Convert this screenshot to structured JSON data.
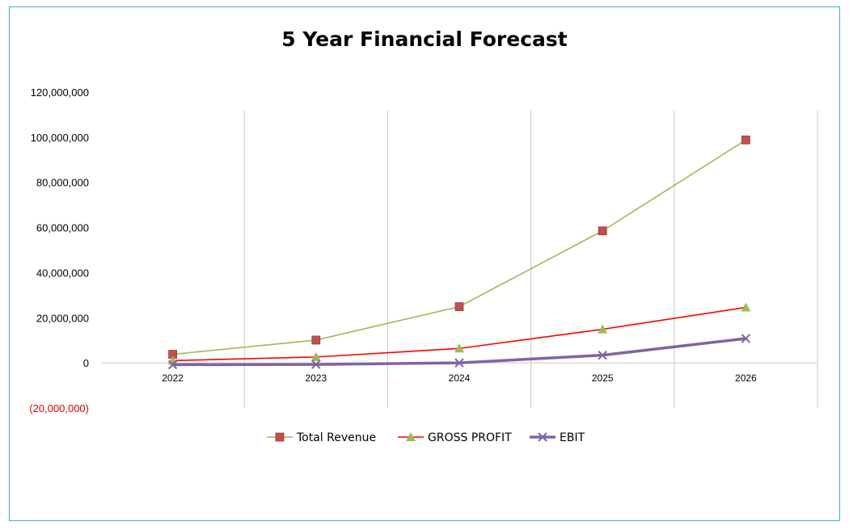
{
  "chart_data": {
    "type": "line",
    "title": "5 Year Financial Forecast",
    "xlabel": "",
    "ylabel": "",
    "categories": [
      "2022",
      "2023",
      "2024",
      "2025",
      "2026"
    ],
    "ylim": [
      -20000000,
      120000000
    ],
    "y_ticks": [
      120000000,
      100000000,
      80000000,
      60000000,
      40000000,
      20000000,
      0,
      -20000000
    ],
    "y_tick_labels": [
      "120,000,000",
      "100,000,000",
      "80,000,000",
      "60,000,000",
      "40,000,000",
      "20,000,000",
      "0",
      "(20,000,000)"
    ],
    "negative_tick_color": "#e00000",
    "grid": "vertical",
    "legend_position": "bottom",
    "series": [
      {
        "name": "Total Revenue",
        "values": [
          3800000,
          10100000,
          24900000,
          58500000,
          98800000
        ],
        "line_color": "#9bbb59",
        "marker": "square",
        "marker_color": "#c0504d"
      },
      {
        "name": "GROSS PROFIT",
        "values": [
          1000000,
          2600000,
          6400000,
          14900000,
          24600000
        ],
        "line_color": "#ff0000",
        "marker": "triangle",
        "marker_color": "#9bbb59"
      },
      {
        "name": "EBIT",
        "values": [
          -800000,
          -700000,
          0,
          3400000,
          10800000
        ],
        "line_color": "#8064a2",
        "marker": "x",
        "marker_color": "#8064a2"
      }
    ]
  }
}
